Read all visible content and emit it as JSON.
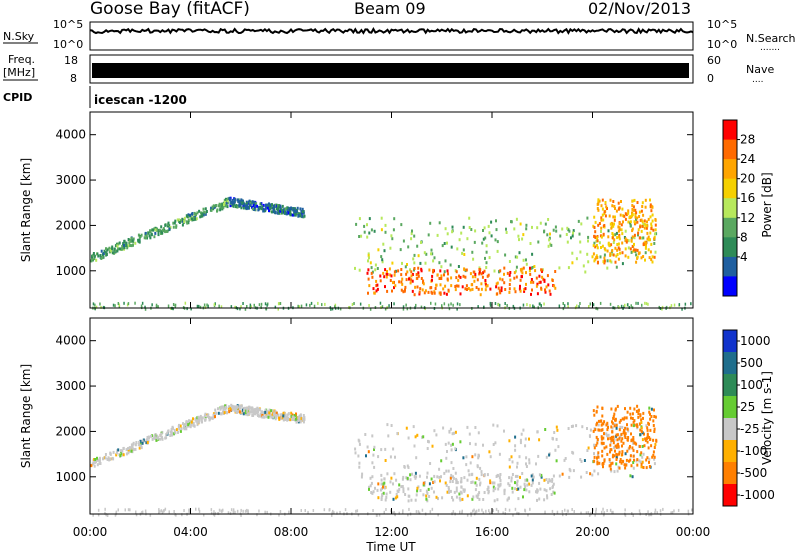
{
  "header": {
    "station": "Goose Bay (fitACF)",
    "beam": "Beam 09",
    "date": "02/Nov/2013"
  },
  "noise_panel": {
    "left_label": "N.Sky",
    "right_label": "N.Search",
    "right_dots": ".......",
    "left_ticks": [
      "10^5",
      "10^0"
    ],
    "right_ticks": [
      "10^5",
      "10^0"
    ]
  },
  "freq_panel": {
    "left_label_1": "Freq.",
    "left_label_2": "[MHz]",
    "right_label": "Nave",
    "right_dots": "....",
    "left_ticks": [
      "18",
      "8"
    ],
    "right_ticks": [
      "60",
      "0"
    ]
  },
  "cpid": {
    "label": "CPID",
    "value": "icescan -1200"
  },
  "axes": {
    "xlabel": "Time UT",
    "ylabel": "Slant Range [km]",
    "x_ticks": [
      "00:00",
      "04:00",
      "08:00",
      "12:00",
      "16:00",
      "20:00",
      "00:00"
    ],
    "y_ticks": [
      "4000",
      "3000",
      "2000",
      "1000"
    ]
  },
  "power_scale": {
    "label": "Power [dB]",
    "ticks": [
      "28",
      "24",
      "20",
      "16",
      "12",
      "8",
      "4"
    ],
    "colors": [
      "#ff0000",
      "#ff6a00",
      "#ffa500",
      "#f5d000",
      "#b7e85c",
      "#5aa860",
      "#2e8b57",
      "#1f5fa0",
      "#0000ff"
    ]
  },
  "velocity_scale": {
    "label": "Velocity [m s-1]",
    "ticks": [
      "1000",
      "500",
      "100",
      "25",
      "-25",
      "-100",
      "-500",
      "-1000"
    ],
    "colors": [
      "#1133cc",
      "#1f6e8c",
      "#2e8b57",
      "#66cc33",
      "#c8c8c8",
      "#ffb000",
      "#ff7f00",
      "#ff0000"
    ]
  },
  "chart_data": {
    "type": "heatmap",
    "title": "Goose Bay (fitACF) Beam 09 02/Nov/2013",
    "xlabel": "Time UT",
    "ylabel": "Slant Range [km]",
    "xlim": [
      0,
      24
    ],
    "ylim": [
      180,
      4500
    ],
    "x_ticks_hours": [
      0,
      4,
      8,
      12,
      16,
      20,
      24
    ],
    "y_ticks_km": [
      1000,
      2000,
      3000,
      4000
    ],
    "panels": [
      {
        "name": "Power [dB]",
        "range": [
          0,
          32
        ]
      },
      {
        "name": "Velocity [m s-1]",
        "range": [
          -1000,
          1000
        ]
      }
    ],
    "scatter_features": [
      {
        "feature": "ionospheric arc",
        "t_start": 0.0,
        "t_end": 5.5,
        "range_km_start": 1300,
        "range_km_end": 2550,
        "power_db": 10,
        "velocity": 0
      },
      {
        "feature": "arc continuation",
        "t_start": 5.5,
        "t_end": 8.5,
        "range_km_start": 2550,
        "range_km_end": 2300,
        "power_db": 6,
        "velocity": 0
      },
      {
        "feature": "ground scatter band",
        "t_start": 10.5,
        "t_end": 22.5,
        "range_km_start": 1000,
        "range_km_end": 2200,
        "power_db": 14,
        "velocity": 0
      },
      {
        "feature": "strong near-range echoes",
        "t_start": 11.0,
        "t_end": 18.5,
        "range_km_start": 500,
        "range_km_end": 1100,
        "power_db": 28,
        "velocity": 0
      },
      {
        "feature": "late high-power patch",
        "t_start": 20.0,
        "t_end": 22.5,
        "range_km_start": 1200,
        "range_km_end": 2600,
        "power_db": 24,
        "velocity": -400
      }
    ]
  }
}
